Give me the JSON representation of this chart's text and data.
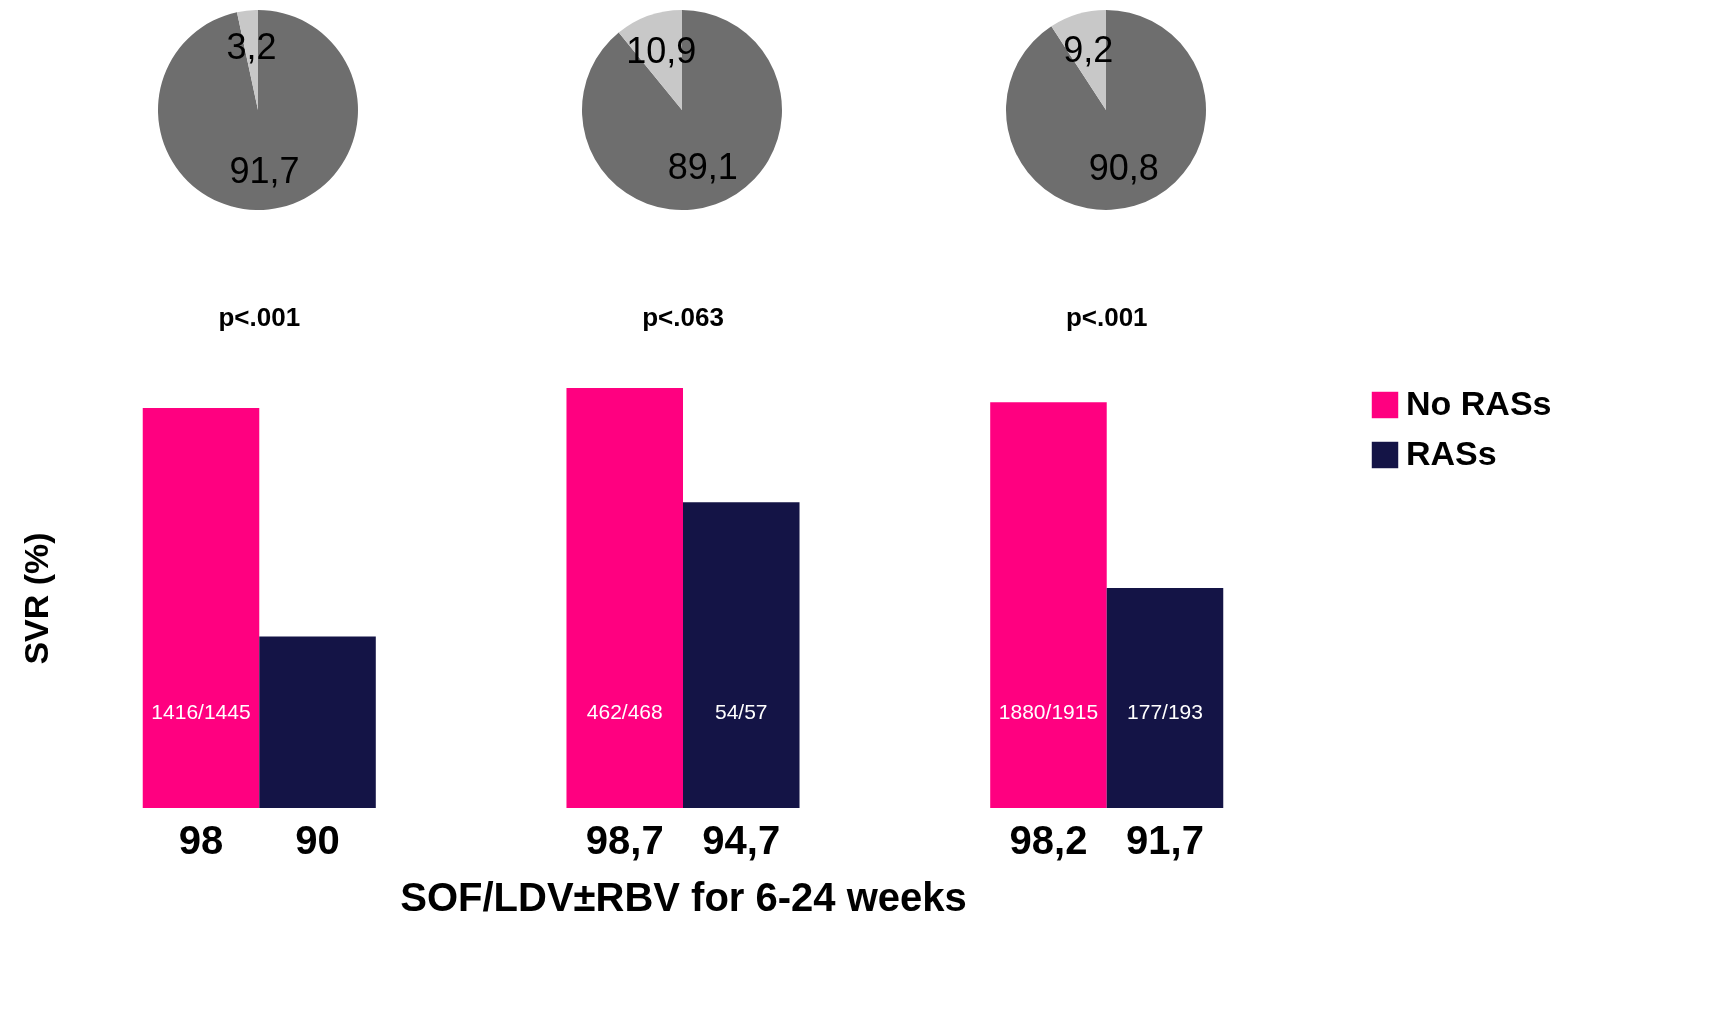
{
  "chart_data": [
    {
      "type": "pie",
      "categories": [
        null,
        null
      ],
      "values": [
        91.7,
        3.2
      ],
      "value_labels": [
        "91,7",
        "3,2"
      ],
      "colors": [
        "#6e6e6e",
        "#c8c8c8"
      ]
    },
    {
      "type": "pie",
      "categories": [
        null,
        null
      ],
      "values": [
        89.1,
        10.9
      ],
      "value_labels": [
        "89,1",
        "10,9"
      ],
      "colors": [
        "#6e6e6e",
        "#c8c8c8"
      ]
    },
    {
      "type": "pie",
      "categories": [
        null,
        null
      ],
      "values": [
        90.8,
        9.2
      ],
      "value_labels": [
        "90,8",
        "9,2"
      ],
      "colors": [
        "#6e6e6e",
        "#c8c8c8"
      ]
    },
    {
      "type": "bar",
      "xlabel": "SOF/LDV±RBV for 6-24 weeks",
      "ylabel": "SVR (%)",
      "categories": [
        null,
        null,
        null
      ],
      "ylim": [
        84,
        98.7
      ],
      "tick_labels": false,
      "legend": "right",
      "series": [
        {
          "name": "No RASs",
          "color": "#ff0080",
          "values": [
            98,
            98.7,
            98.2
          ],
          "value_labels": [
            "98",
            "98,7",
            "98,2"
          ]
        },
        {
          "name": "RASs",
          "color": "#141446",
          "values": [
            90,
            94.7,
            91.7
          ],
          "value_labels": [
            "90",
            "94,7",
            "91,7"
          ]
        }
      ],
      "annotations": [
        "p<.001",
        "p<.063",
        "p<.001",
        "1416/1445",
        "462/468",
        "54/57",
        "1880/1915",
        "177/193"
      ]
    }
  ]
}
